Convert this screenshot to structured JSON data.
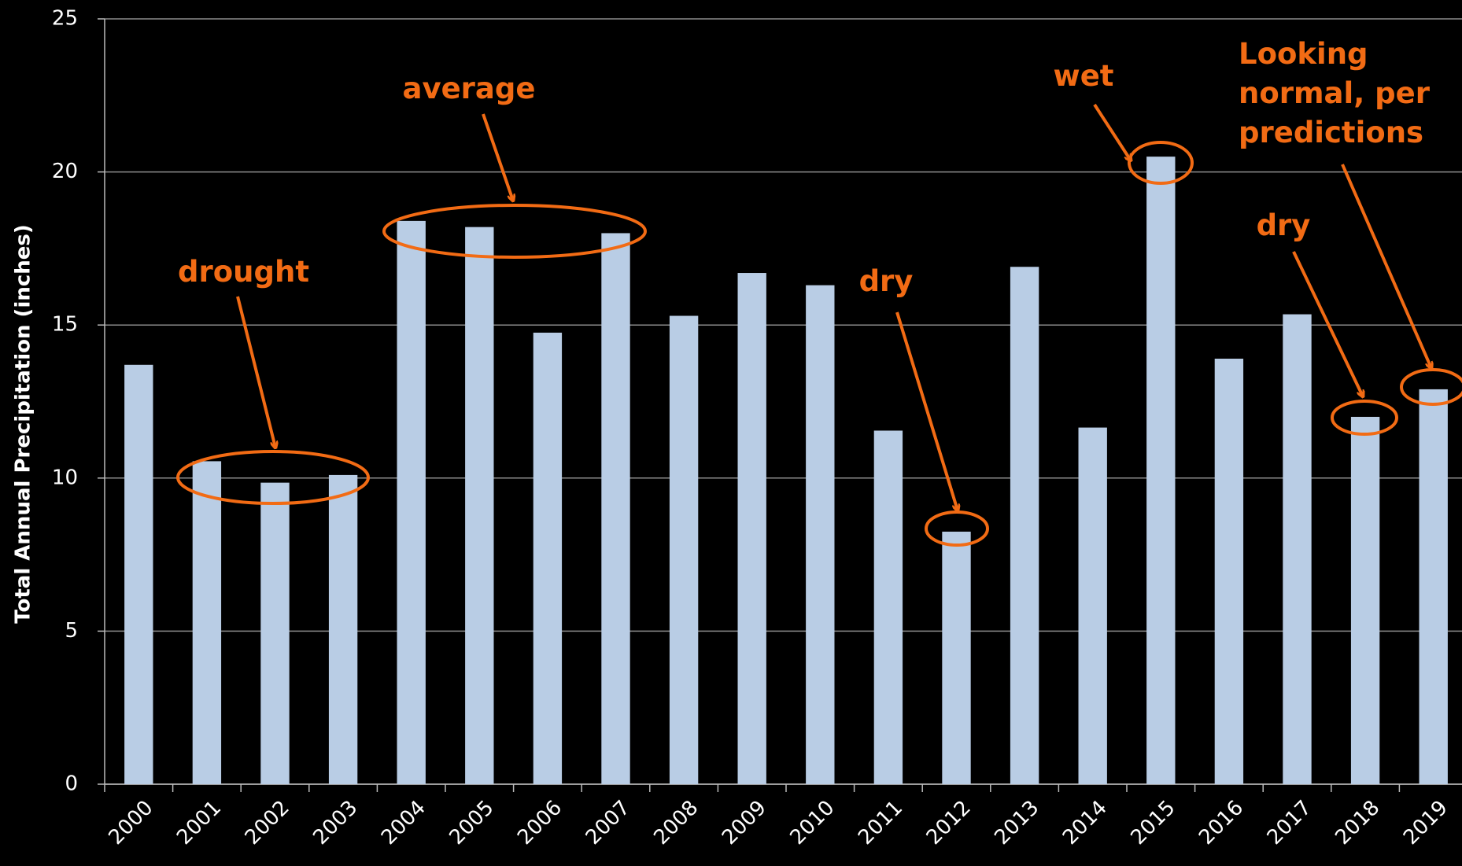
{
  "chart_data": {
    "type": "bar",
    "y_axis_label": "Total Annual Precipitation (inches)",
    "categories": [
      "2000",
      "2001",
      "2002",
      "2003",
      "2004",
      "2005",
      "2006",
      "2007",
      "2008",
      "2009",
      "2010",
      "2011",
      "2012",
      "2013",
      "2014",
      "2015",
      "2016",
      "2017",
      "2018",
      "2019"
    ],
    "values": [
      13.7,
      10.55,
      9.85,
      10.1,
      18.4,
      18.2,
      14.75,
      18.0,
      15.3,
      16.7,
      16.3,
      11.55,
      8.25,
      16.9,
      11.65,
      20.5,
      13.9,
      15.35,
      12.0,
      12.9
    ],
    "color": "#b9cde5",
    "ylim": [
      0,
      25
    ],
    "yticks": [
      0,
      5,
      10,
      15,
      20,
      25
    ],
    "grid": true,
    "annotations": [
      "drought",
      "average",
      "dry",
      "wet",
      "dry",
      "Looking normal, per predictions"
    ]
  }
}
